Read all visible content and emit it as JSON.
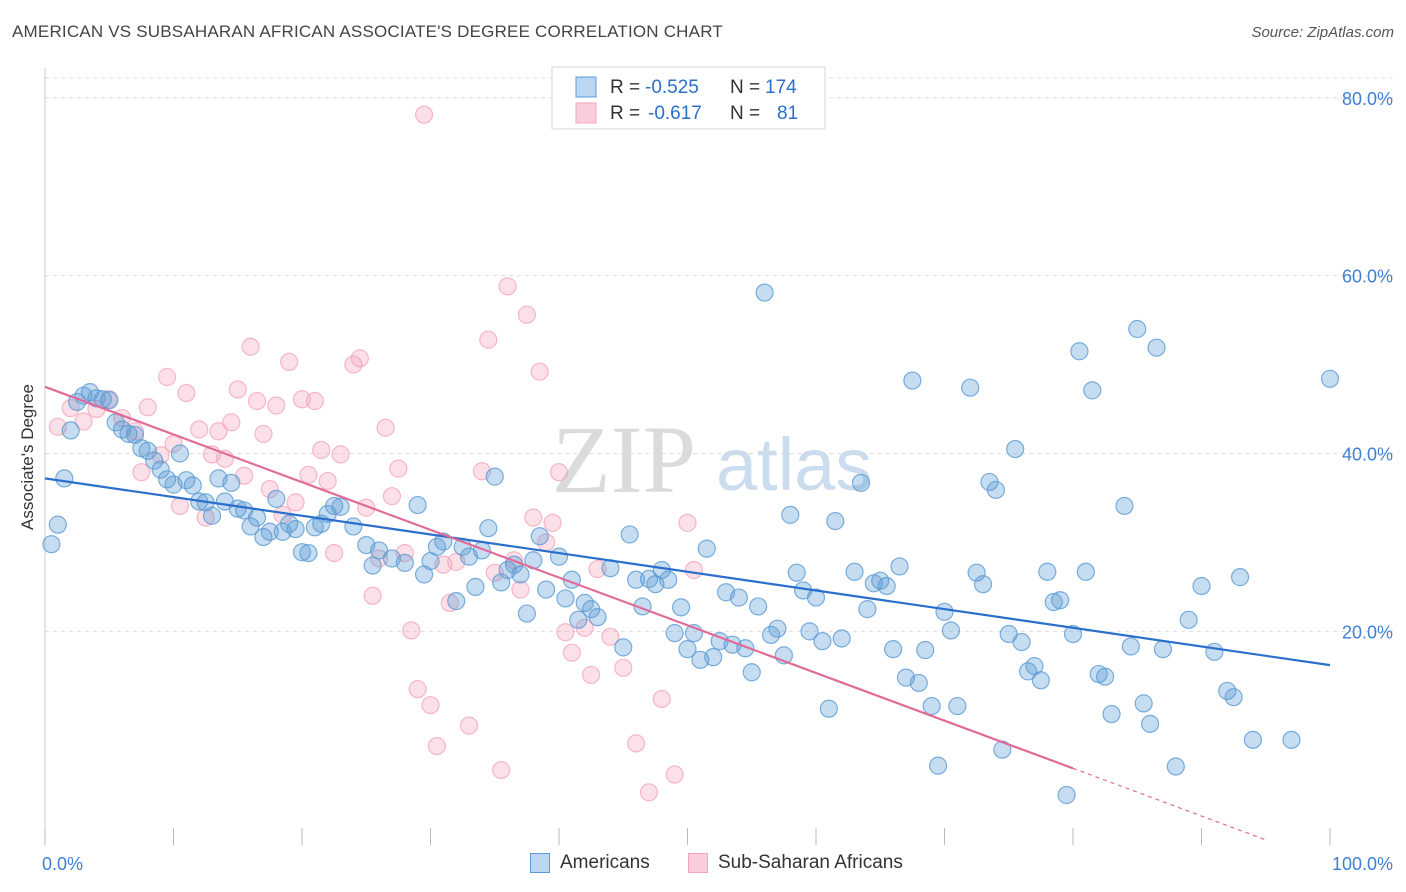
{
  "title": "AMERICAN VS SUBSAHARAN AFRICAN ASSOCIATE'S DEGREE CORRELATION CHART",
  "source": "Source: ZipAtlas.com",
  "watermark": {
    "zip": "ZIP",
    "atlas": "atlas"
  },
  "colors": {
    "blue": "#5b9bd5",
    "blue_line": "#2a6fcc",
    "pink": "#f4a6bd",
    "pink_line": "#e06a98",
    "axis_text": "#3f7fd4",
    "grid": "#dddddd"
  },
  "stats": [
    {
      "r_label": "R =",
      "r_value": "-0.525",
      "n_label": "N =",
      "n_value": "174"
    },
    {
      "r_label": "R =",
      "r_value": "-0.617",
      "n_label": "N =",
      "n_value": "81"
    }
  ],
  "chart_data": {
    "type": "scatter",
    "title": "AMERICAN VS SUBSAHARAN AFRICAN ASSOCIATE'S DEGREE CORRELATION CHART",
    "xlabel": "",
    "ylabel": "Associate's Degree",
    "xlim": [
      0,
      100
    ],
    "ylim": [
      -2,
      82
    ],
    "x_tick_labels": [
      "0.0%",
      "100.0%"
    ],
    "y_ticks": [
      20,
      40,
      60,
      80
    ],
    "y_tick_labels": [
      "20.0%",
      "40.0%",
      "60.0%",
      "80.0%"
    ],
    "grid": true,
    "legend": "bottom-center",
    "series": [
      {
        "name": "Americans",
        "color": "#5b9bd5",
        "trend": {
          "x": [
            0,
            100
          ],
          "y": [
            37.2,
            16.2
          ]
        },
        "points": [
          [
            0.5,
            29.8
          ],
          [
            1,
            32
          ],
          [
            1.5,
            37.2
          ],
          [
            2,
            42.6
          ],
          [
            2.5,
            45.8
          ],
          [
            3,
            46.5
          ],
          [
            3.5,
            46.9
          ],
          [
            4,
            46.2
          ],
          [
            4.5,
            46.1
          ],
          [
            5,
            46
          ],
          [
            5.5,
            43.5
          ],
          [
            6,
            42.7
          ],
          [
            6.5,
            42.2
          ],
          [
            7,
            42.1
          ],
          [
            7.5,
            40.6
          ],
          [
            8,
            40.3
          ],
          [
            8.5,
            39.2
          ],
          [
            9,
            38.2
          ],
          [
            9.5,
            37.1
          ],
          [
            10,
            36.5
          ],
          [
            10.5,
            40
          ],
          [
            11,
            37
          ],
          [
            11.5,
            36.4
          ],
          [
            12,
            34.6
          ],
          [
            12.5,
            34.5
          ],
          [
            13,
            33
          ],
          [
            13.5,
            37.2
          ],
          [
            14,
            34.6
          ],
          [
            14.5,
            36.7
          ],
          [
            15,
            33.8
          ],
          [
            15.5,
            33.6
          ],
          [
            16,
            31.8
          ],
          [
            16.5,
            32.8
          ],
          [
            17,
            30.6
          ],
          [
            17.5,
            31.2
          ],
          [
            18,
            34.9
          ],
          [
            18.5,
            31.2
          ],
          [
            19,
            32.1
          ],
          [
            19.5,
            31.5
          ],
          [
            20,
            28.9
          ],
          [
            20.5,
            28.8
          ],
          [
            21,
            31.7
          ],
          [
            21.5,
            32.1
          ],
          [
            22,
            33.2
          ],
          [
            22.5,
            34.1
          ],
          [
            23,
            34
          ],
          [
            24,
            31.8
          ],
          [
            25,
            29.7
          ],
          [
            25.5,
            27.4
          ],
          [
            26,
            29.1
          ],
          [
            27,
            28.2
          ],
          [
            28,
            27.7
          ],
          [
            29,
            34.2
          ],
          [
            29.5,
            26.4
          ],
          [
            30,
            27.9
          ],
          [
            30.5,
            29.5
          ],
          [
            31,
            30.1
          ],
          [
            32,
            23.4
          ],
          [
            32.5,
            29.5
          ],
          [
            33,
            28.4
          ],
          [
            33.5,
            25
          ],
          [
            34,
            29.1
          ],
          [
            34.5,
            31.6
          ],
          [
            35,
            37.4
          ],
          [
            35.5,
            25.5
          ],
          [
            36,
            26.9
          ],
          [
            36.5,
            27.5
          ],
          [
            37,
            26.4
          ],
          [
            37.5,
            22
          ],
          [
            38,
            28
          ],
          [
            38.5,
            30.7
          ],
          [
            39,
            24.7
          ],
          [
            40,
            28.4
          ],
          [
            40.5,
            23.7
          ],
          [
            41,
            25.8
          ],
          [
            41.5,
            21.3
          ],
          [
            42,
            23.2
          ],
          [
            42.5,
            22.5
          ],
          [
            43,
            21.6
          ],
          [
            44,
            27.1
          ],
          [
            45,
            18.2
          ],
          [
            45.5,
            30.9
          ],
          [
            46,
            25.8
          ],
          [
            46.5,
            22.8
          ],
          [
            47,
            25.9
          ],
          [
            47.5,
            25.3
          ],
          [
            48,
            26.9
          ],
          [
            48.5,
            25.8
          ],
          [
            49,
            19.8
          ],
          [
            49.5,
            22.7
          ],
          [
            50,
            18
          ],
          [
            50.5,
            19.8
          ],
          [
            51,
            16.8
          ],
          [
            51.5,
            29.3
          ],
          [
            52,
            17.1
          ],
          [
            52.5,
            18.9
          ],
          [
            53,
            24.4
          ],
          [
            53.5,
            18.5
          ],
          [
            54,
            23.8
          ],
          [
            54.5,
            18.1
          ],
          [
            55,
            15.4
          ],
          [
            55.5,
            22.8
          ],
          [
            56,
            58.1
          ],
          [
            56.5,
            19.6
          ],
          [
            57,
            20.3
          ],
          [
            57.5,
            17.3
          ],
          [
            58,
            33.1
          ],
          [
            58.5,
            26.6
          ],
          [
            59,
            24.6
          ],
          [
            59.5,
            20
          ],
          [
            60,
            23.8
          ],
          [
            60.5,
            18.9
          ],
          [
            61,
            11.3
          ],
          [
            61.5,
            32.4
          ],
          [
            62,
            19.2
          ],
          [
            63,
            26.7
          ],
          [
            63.5,
            36.7
          ],
          [
            64,
            22.5
          ],
          [
            64.5,
            25.4
          ],
          [
            65,
            25.7
          ],
          [
            65.5,
            25.1
          ],
          [
            66,
            18
          ],
          [
            66.5,
            27.3
          ],
          [
            67,
            14.8
          ],
          [
            67.5,
            48.2
          ],
          [
            68,
            14.2
          ],
          [
            68.5,
            17.9
          ],
          [
            69,
            11.6
          ],
          [
            69.5,
            4.9
          ],
          [
            70,
            22.2
          ],
          [
            70.5,
            20.1
          ],
          [
            71,
            11.6
          ],
          [
            72,
            47.4
          ],
          [
            72.5,
            26.6
          ],
          [
            73,
            25.3
          ],
          [
            73.5,
            36.8
          ],
          [
            74,
            35.9
          ],
          [
            74.5,
            6.7
          ],
          [
            75,
            19.7
          ],
          [
            75.5,
            40.5
          ],
          [
            76,
            18.8
          ],
          [
            76.5,
            15.5
          ],
          [
            77,
            16.1
          ],
          [
            77.5,
            14.5
          ],
          [
            78,
            26.7
          ],
          [
            78.5,
            23.3
          ],
          [
            79,
            23.5
          ],
          [
            79.5,
            1.6
          ],
          [
            80,
            19.7
          ],
          [
            80.5,
            51.5
          ],
          [
            81,
            26.7
          ],
          [
            81.5,
            47.1
          ],
          [
            82,
            15.2
          ],
          [
            82.5,
            14.9
          ],
          [
            83,
            10.7
          ],
          [
            84,
            34.1
          ],
          [
            84.5,
            18.3
          ],
          [
            85,
            54
          ],
          [
            85.5,
            11.9
          ],
          [
            86,
            9.6
          ],
          [
            86.5,
            51.9
          ],
          [
            87,
            18
          ],
          [
            88,
            4.8
          ],
          [
            89,
            21.3
          ],
          [
            90,
            25.1
          ],
          [
            91,
            17.7
          ],
          [
            92,
            13.3
          ],
          [
            92.5,
            12.6
          ],
          [
            93,
            26.1
          ],
          [
            94,
            7.8
          ],
          [
            97,
            7.8
          ],
          [
            100,
            48.4
          ]
        ]
      },
      {
        "name": "Sub-Saharan Africans",
        "color": "#f4a6bd",
        "trend": {
          "x": [
            0,
            80
          ],
          "y": [
            47.5,
            4.6
          ]
        },
        "points": [
          [
            1,
            43
          ],
          [
            2,
            45.1
          ],
          [
            3,
            43.6
          ],
          [
            4,
            45
          ],
          [
            5,
            46.1
          ],
          [
            6,
            44
          ],
          [
            7,
            42.5
          ],
          [
            7.5,
            37.9
          ],
          [
            8,
            45.2
          ],
          [
            9,
            39.8
          ],
          [
            9.5,
            48.6
          ],
          [
            10,
            41.1
          ],
          [
            10.5,
            34.1
          ],
          [
            11,
            46.8
          ],
          [
            12,
            42.7
          ],
          [
            12.5,
            32.8
          ],
          [
            13,
            39.9
          ],
          [
            13.5,
            42.5
          ],
          [
            14,
            39.4
          ],
          [
            14.5,
            43.5
          ],
          [
            15,
            47.2
          ],
          [
            15.5,
            37.5
          ],
          [
            16,
            52
          ],
          [
            16.5,
            45.9
          ],
          [
            17,
            42.2
          ],
          [
            17.5,
            36
          ],
          [
            18,
            45.4
          ],
          [
            18.5,
            33.1
          ],
          [
            19,
            50.3
          ],
          [
            19.5,
            34.5
          ],
          [
            20,
            46.1
          ],
          [
            20.5,
            37.6
          ],
          [
            21,
            45.9
          ],
          [
            21.5,
            40.4
          ],
          [
            22,
            36.9
          ],
          [
            22.5,
            28.8
          ],
          [
            23,
            39.9
          ],
          [
            24,
            50
          ],
          [
            24.5,
            50.7
          ],
          [
            25,
            33.9
          ],
          [
            25.5,
            24
          ],
          [
            26,
            28.2
          ],
          [
            26.5,
            42.9
          ],
          [
            27,
            35.2
          ],
          [
            27.5,
            38.3
          ],
          [
            28,
            28.8
          ],
          [
            28.5,
            20.1
          ],
          [
            29,
            13.5
          ],
          [
            29.5,
            78.1
          ],
          [
            30,
            11.7
          ],
          [
            30.5,
            7.1
          ],
          [
            31,
            27.5
          ],
          [
            31.5,
            23.2
          ],
          [
            32,
            27.8
          ],
          [
            33,
            9.4
          ],
          [
            34,
            38
          ],
          [
            34.5,
            52.8
          ],
          [
            35,
            26.6
          ],
          [
            35.5,
            4.4
          ],
          [
            36,
            58.8
          ],
          [
            36.5,
            28
          ],
          [
            37,
            24.7
          ],
          [
            37.5,
            55.6
          ],
          [
            38,
            32.8
          ],
          [
            38.5,
            49.2
          ],
          [
            39,
            30
          ],
          [
            39.5,
            32.2
          ],
          [
            40,
            37.9
          ],
          [
            40.5,
            19.9
          ],
          [
            41,
            17.6
          ],
          [
            42,
            20.4
          ],
          [
            42.5,
            15.1
          ],
          [
            43,
            27
          ],
          [
            44,
            19.4
          ],
          [
            45,
            15.9
          ],
          [
            46,
            7.4
          ],
          [
            47,
            1.9
          ],
          [
            48,
            12.4
          ],
          [
            49,
            3.9
          ],
          [
            50,
            32.2
          ],
          [
            50.5,
            26.9
          ]
        ]
      }
    ]
  },
  "legend_items": [
    {
      "label": "Americans"
    },
    {
      "label": "Sub-Saharan Africans"
    }
  ]
}
